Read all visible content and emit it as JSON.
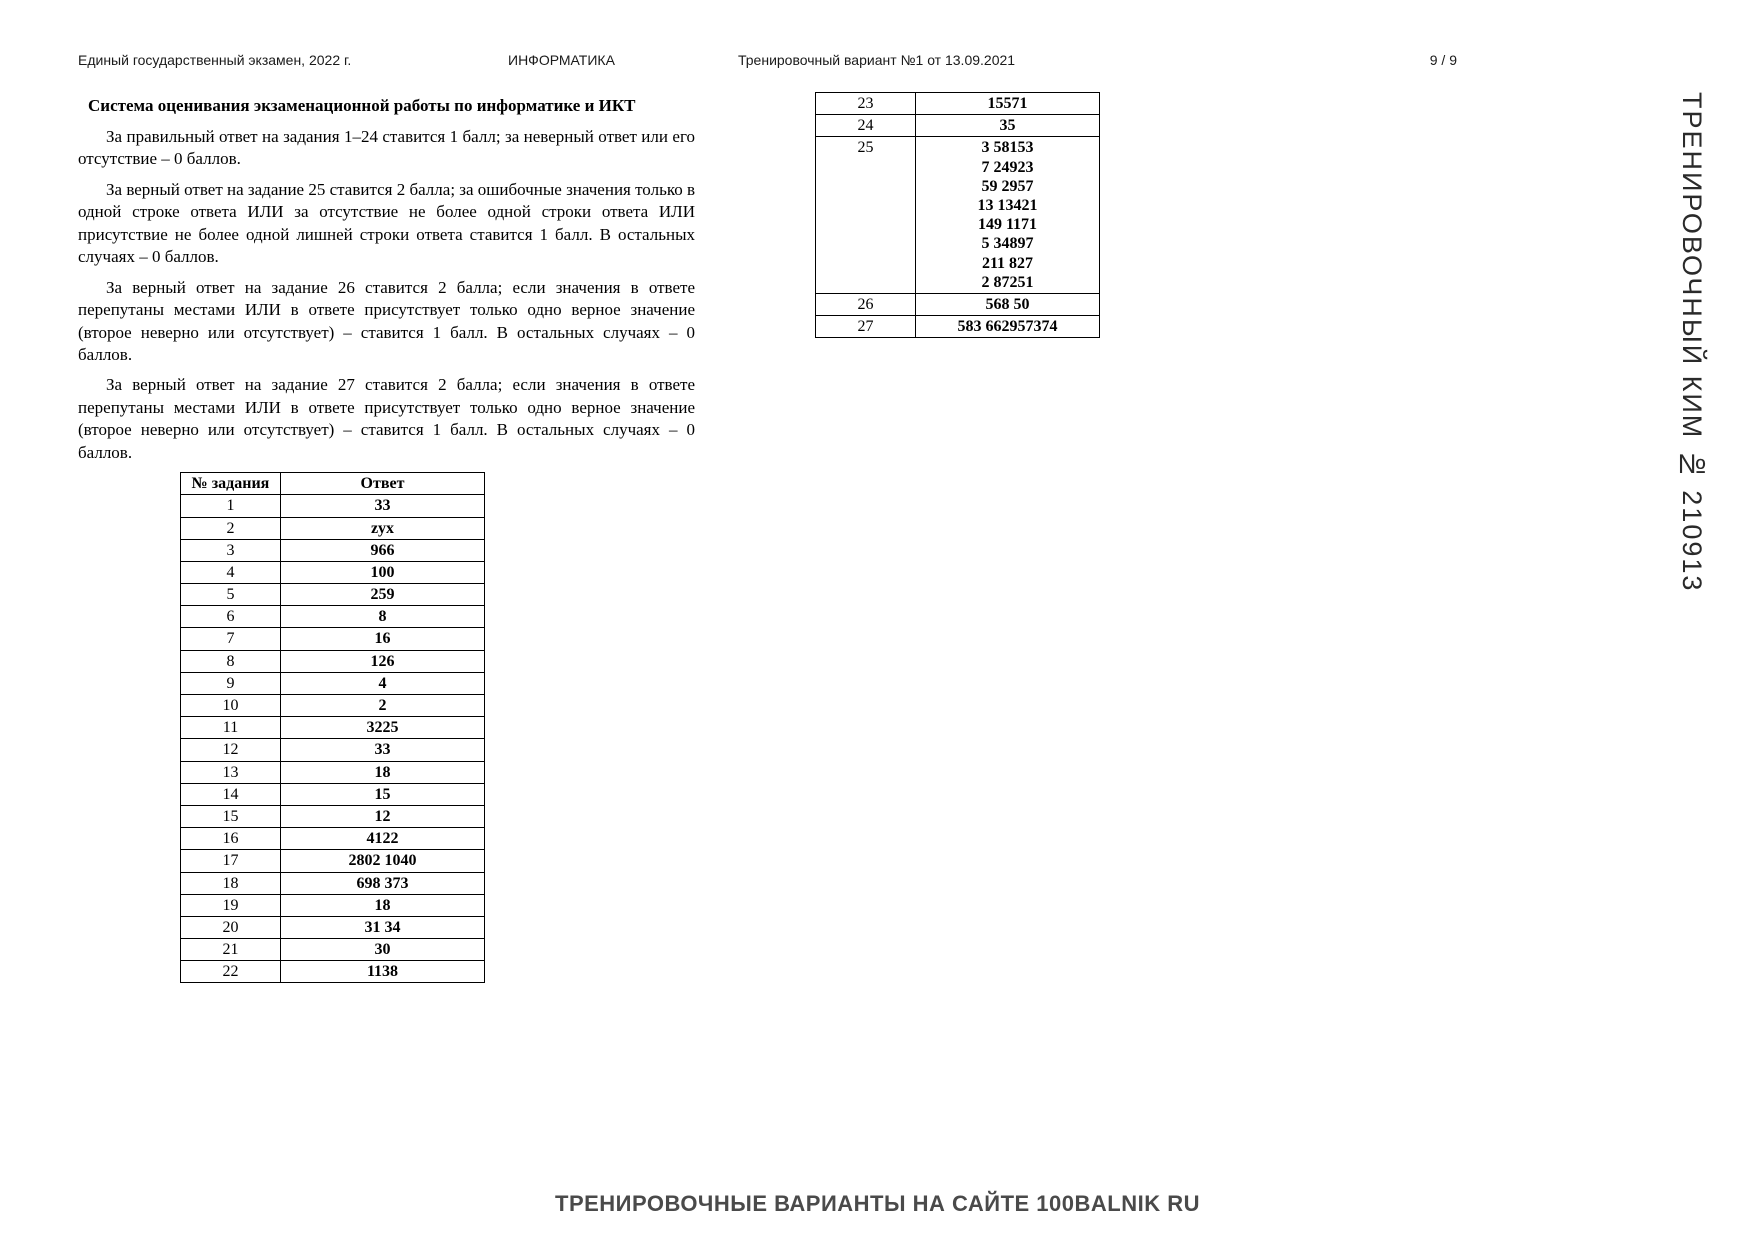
{
  "header": {
    "left": "Единый государственный экзамен, 2022 г.",
    "center": "ИНФОРМАТИКА",
    "right": "Тренировочный вариант №1 от 13.09.2021",
    "page": "9 / 9"
  },
  "heading": "Система оценивания экзаменационной работы по информатике и ИКТ",
  "paragraphs": {
    "p1": "За правильный ответ на задания 1–24 ставится 1 балл; за неверный ответ или его отсутствие – 0 баллов.",
    "p2": "За верный ответ на задание 25 ставится 2 балла; за ошибочные значения только в одной строке ответа ИЛИ за отсутствие не более одной строки ответа ИЛИ присутствие не более одной лишней строки ответа ставится 1 балл. В остальных случаях – 0 баллов.",
    "p3": "За верный ответ на задание 26 ставится 2 балла; если значения в ответе перепутаны местами ИЛИ в ответе присутствует только одно верное значение (второе неверно или отсутствует) – ставится 1 балл. В остальных случаях – 0 баллов.",
    "p4": "За верный ответ на задание 27 ставится 2 балла; если значения в ответе перепутаны местами ИЛИ в ответе присутствует только одно верное значение (второе неверно или отсутствует) – ставится 1 балл. В остальных случаях – 0 баллов."
  },
  "table": {
    "headers": {
      "num": "№ задания",
      "ans": "Ответ"
    },
    "rows_left": [
      {
        "n": "1",
        "a": "33"
      },
      {
        "n": "2",
        "a": "zyx"
      },
      {
        "n": "3",
        "a": "966"
      },
      {
        "n": "4",
        "a": "100"
      },
      {
        "n": "5",
        "a": "259"
      },
      {
        "n": "6",
        "a": "8"
      },
      {
        "n": "7",
        "a": "16"
      },
      {
        "n": "8",
        "a": "126"
      },
      {
        "n": "9",
        "a": "4"
      },
      {
        "n": "10",
        "a": "2"
      },
      {
        "n": "11",
        "a": "3225"
      },
      {
        "n": "12",
        "a": "33"
      },
      {
        "n": "13",
        "a": "18"
      },
      {
        "n": "14",
        "a": "15"
      },
      {
        "n": "15",
        "a": "12"
      },
      {
        "n": "16",
        "a": "4122"
      },
      {
        "n": "17",
        "a": "2802 1040"
      },
      {
        "n": "18",
        "a": "698 373"
      },
      {
        "n": "19",
        "a": "18"
      },
      {
        "n": "20",
        "a": "31 34"
      },
      {
        "n": "21",
        "a": "30"
      },
      {
        "n": "22",
        "a": "1138"
      }
    ],
    "rows_right": [
      {
        "n": "23",
        "a": "15571"
      },
      {
        "n": "24",
        "a": "35"
      },
      {
        "n": "25",
        "a": "3 58153\n7 24923\n59 2957\n13 13421\n149 1171\n5 34897\n211 827\n2 87251"
      },
      {
        "n": "26",
        "a": "568 50"
      },
      {
        "n": "27",
        "a": "583 662957374"
      }
    ]
  },
  "side_label": "ТРЕНИРОВОЧНЫЙ КИМ № 210913",
  "footer": "ТРЕНИРОВОЧНЫЕ ВАРИАНТЫ НА САЙТЕ 100BALNIK RU",
  "colors": {
    "text": "#000000",
    "bg": "#ffffff",
    "border": "#000000",
    "muted": "#4a4a4a"
  }
}
